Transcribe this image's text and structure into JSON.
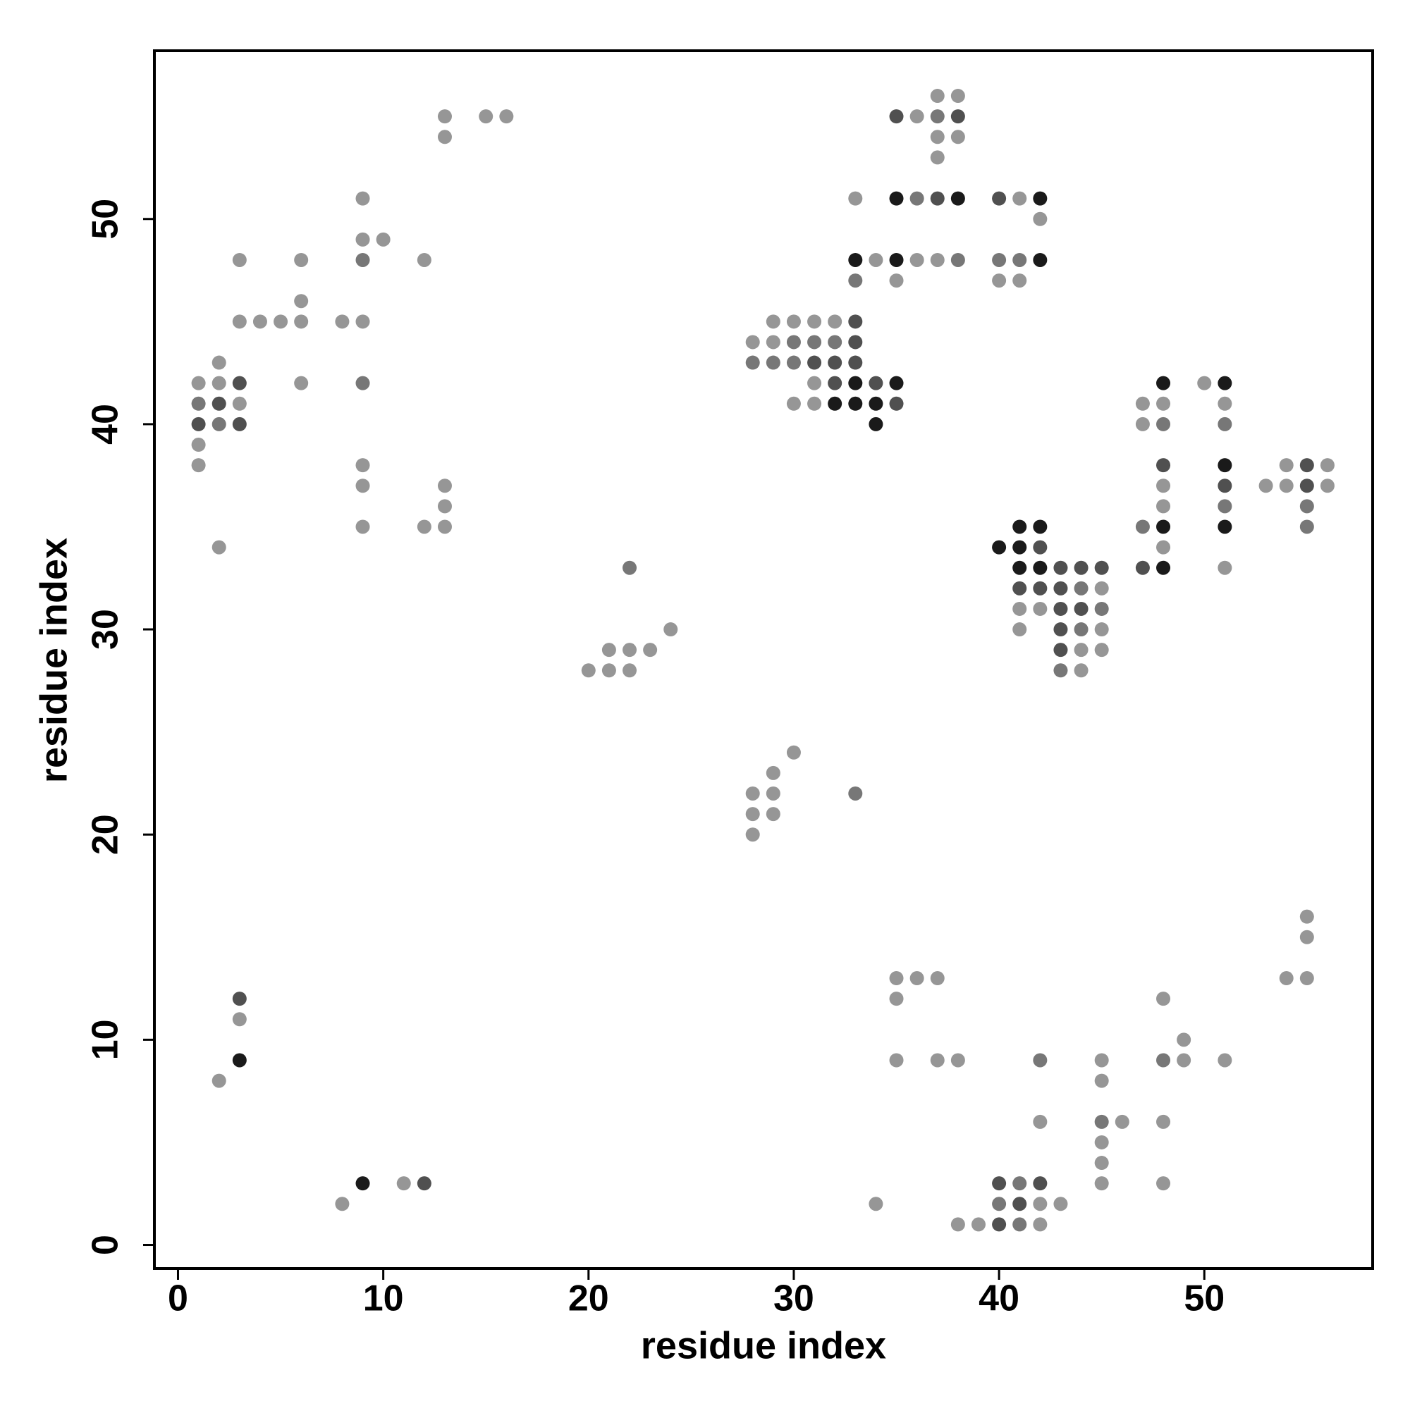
{
  "chart_data": {
    "type": "scatter",
    "x_label": "residue index",
    "y_label": "residue index",
    "xlim": [
      -1.15,
      58.2
    ],
    "ylim": [
      -1.15,
      58.2
    ],
    "xticks": [
      0,
      10,
      20,
      30,
      40,
      50
    ],
    "yticks": [
      0,
      10,
      20,
      30,
      40,
      50
    ],
    "series": [
      {
        "color": "#969696",
        "x": [
          37,
          38,
          13,
          15,
          16,
          36,
          13,
          37,
          38,
          37,
          9,
          33,
          41,
          42,
          9,
          10,
          3,
          6,
          12,
          34,
          36,
          37,
          35,
          40,
          41,
          6,
          3,
          4,
          5,
          6,
          8,
          9,
          29,
          30,
          31,
          32,
          28,
          29,
          2,
          1,
          2,
          6,
          31,
          50,
          3,
          30,
          31,
          47,
          48,
          51,
          47,
          1,
          1,
          9,
          54,
          56,
          9,
          13,
          48,
          53,
          54,
          56,
          13,
          48,
          9,
          12,
          13,
          2,
          48,
          51,
          45,
          41,
          42,
          24,
          41,
          45,
          21,
          22,
          23,
          44,
          45,
          20,
          21,
          22,
          44,
          30,
          29,
          28,
          29,
          28,
          29,
          28,
          55,
          55,
          35,
          36,
          37,
          54,
          55,
          35,
          48,
          3,
          49,
          35,
          37,
          38,
          45,
          49,
          51,
          2,
          45,
          42,
          46,
          48,
          45,
          45,
          11,
          45,
          48,
          8,
          34,
          42,
          43,
          38,
          39,
          42
        ],
        "values": [
          56,
          56,
          55,
          55,
          55,
          55,
          54,
          54,
          54,
          53,
          51,
          51,
          51,
          50,
          49,
          49,
          48,
          48,
          48,
          48,
          48,
          48,
          47,
          47,
          47,
          46,
          45,
          45,
          45,
          45,
          45,
          45,
          45,
          45,
          45,
          45,
          44,
          44,
          43,
          42,
          42,
          42,
          42,
          42,
          41,
          41,
          41,
          41,
          41,
          41,
          40,
          39,
          38,
          38,
          38,
          38,
          37,
          37,
          37,
          37,
          37,
          37,
          36,
          36,
          35,
          35,
          35,
          34,
          34,
          33,
          32,
          31,
          31,
          30,
          30,
          30,
          29,
          29,
          29,
          29,
          29,
          28,
          28,
          28,
          28,
          24,
          23,
          22,
          22,
          21,
          21,
          20,
          16,
          15,
          13,
          13,
          13,
          13,
          13,
          12,
          12,
          11,
          10,
          9,
          9,
          9,
          9,
          9,
          9,
          8,
          8,
          6,
          6,
          6,
          5,
          4,
          3,
          3,
          3,
          2,
          2,
          2,
          2,
          1,
          1,
          1
        ]
      },
      {
        "color": "#777777",
        "x": [
          37,
          36,
          9,
          38,
          40,
          41,
          33,
          30,
          31,
          32,
          28,
          29,
          30,
          9,
          1,
          2,
          48,
          51,
          51,
          55,
          47,
          55,
          22,
          44,
          45,
          44,
          43,
          33,
          42,
          48,
          45,
          41,
          40,
          41
        ],
        "values": [
          55,
          51,
          48,
          48,
          48,
          48,
          47,
          44,
          44,
          44,
          43,
          43,
          43,
          42,
          41,
          40,
          40,
          40,
          36,
          36,
          35,
          35,
          33,
          32,
          31,
          30,
          28,
          22,
          9,
          9,
          6,
          3,
          2,
          1
        ]
      },
      {
        "color": "#505050",
        "x": [
          35,
          38,
          37,
          40,
          33,
          33,
          31,
          32,
          33,
          3,
          32,
          34,
          2,
          35,
          1,
          3,
          48,
          55,
          51,
          55,
          42,
          43,
          44,
          45,
          47,
          41,
          42,
          43,
          43,
          44,
          43,
          43,
          3,
          12,
          40,
          42,
          41,
          40
        ],
        "values": [
          55,
          55,
          51,
          51,
          45,
          44,
          43,
          43,
          43,
          42,
          42,
          42,
          41,
          41,
          40,
          40,
          38,
          38,
          37,
          37,
          34,
          33,
          33,
          33,
          33,
          32,
          32,
          32,
          31,
          31,
          30,
          29,
          12,
          3,
          3,
          3,
          2,
          1
        ]
      },
      {
        "color": "#1a1a1a",
        "x": [
          35,
          38,
          42,
          33,
          35,
          42,
          33,
          35,
          48,
          51,
          32,
          33,
          34,
          34,
          51,
          41,
          42,
          48,
          51,
          40,
          41,
          41,
          42,
          48,
          3,
          9
        ],
        "values": [
          51,
          51,
          51,
          48,
          48,
          48,
          42,
          42,
          42,
          42,
          41,
          41,
          41,
          40,
          38,
          35,
          35,
          35,
          35,
          34,
          34,
          33,
          33,
          33,
          9,
          3
        ]
      }
    ]
  }
}
